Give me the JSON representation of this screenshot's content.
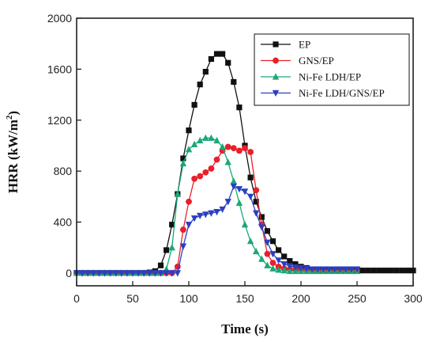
{
  "chart_data": {
    "type": "line",
    "xlabel": "Time (s)",
    "ylabel_main": "HRR (kW/m",
    "ylabel_sup": "2",
    "ylabel_close": ")",
    "xlim": [
      0,
      300
    ],
    "ylim": [
      -100,
      2000
    ],
    "xticks": [
      0,
      50,
      100,
      150,
      200,
      250,
      300
    ],
    "yticks": [
      0,
      400,
      800,
      1200,
      1600,
      2000
    ],
    "grid": false,
    "legend_position": "top-right",
    "series": [
      {
        "name": "EP",
        "color": "#111111",
        "marker": "square",
        "x": [
          0,
          5,
          10,
          15,
          20,
          25,
          30,
          35,
          40,
          45,
          50,
          55,
          60,
          65,
          70,
          75,
          80,
          85,
          90,
          95,
          100,
          105,
          110,
          115,
          120,
          125,
          130,
          135,
          140,
          145,
          150,
          155,
          160,
          165,
          170,
          175,
          180,
          185,
          190,
          195,
          200,
          205,
          210,
          215,
          220,
          225,
          230,
          235,
          240,
          245,
          250,
          255,
          260,
          265,
          270,
          275,
          280,
          285,
          290,
          295,
          300
        ],
        "y": [
          0,
          0,
          0,
          0,
          0,
          0,
          0,
          0,
          0,
          0,
          0,
          0,
          0,
          5,
          15,
          60,
          180,
          380,
          620,
          900,
          1120,
          1320,
          1480,
          1580,
          1680,
          1720,
          1720,
          1650,
          1500,
          1300,
          1000,
          750,
          560,
          440,
          330,
          250,
          180,
          130,
          95,
          70,
          50,
          40,
          30,
          25,
          20,
          20,
          20,
          20,
          20,
          20,
          20,
          20,
          20,
          20,
          20,
          20,
          20,
          20,
          20,
          20,
          20
        ]
      },
      {
        "name": "GNS/EP",
        "color": "#e8202a",
        "marker": "circle",
        "x": [
          0,
          5,
          10,
          15,
          20,
          25,
          30,
          35,
          40,
          45,
          50,
          55,
          60,
          65,
          70,
          75,
          80,
          85,
          90,
          95,
          100,
          105,
          110,
          115,
          120,
          125,
          130,
          135,
          140,
          145,
          150,
          155,
          160,
          165,
          170,
          175,
          180,
          185,
          190,
          195,
          200,
          205,
          210,
          215,
          220,
          225,
          230,
          235,
          240,
          245,
          250
        ],
        "y": [
          0,
          0,
          0,
          0,
          0,
          0,
          0,
          0,
          0,
          0,
          0,
          0,
          0,
          0,
          0,
          0,
          0,
          0,
          50,
          340,
          560,
          740,
          760,
          790,
          820,
          890,
          960,
          990,
          980,
          960,
          980,
          950,
          650,
          380,
          150,
          80,
          50,
          35,
          30,
          25,
          20,
          20,
          20,
          20,
          20,
          20,
          20,
          20,
          20,
          20,
          20
        ]
      },
      {
        "name": "Ni-Fe LDH/EP",
        "color": "#1aa877",
        "marker": "triangle-up",
        "x": [
          0,
          5,
          10,
          15,
          20,
          25,
          30,
          35,
          40,
          45,
          50,
          55,
          60,
          65,
          70,
          75,
          80,
          85,
          90,
          95,
          100,
          105,
          110,
          115,
          120,
          125,
          130,
          135,
          140,
          145,
          150,
          155,
          160,
          165,
          170,
          175,
          180,
          185,
          190,
          195,
          200,
          205,
          210,
          215,
          220,
          225,
          230,
          235,
          240,
          245,
          250
        ],
        "y": [
          0,
          0,
          0,
          0,
          0,
          0,
          0,
          0,
          0,
          0,
          0,
          0,
          0,
          0,
          0,
          0,
          30,
          200,
          620,
          860,
          970,
          1010,
          1040,
          1060,
          1060,
          1040,
          990,
          870,
          720,
          550,
          380,
          250,
          170,
          110,
          60,
          35,
          25,
          20,
          15,
          15,
          15,
          15,
          15,
          15,
          15,
          15,
          15,
          15,
          15,
          15,
          15
        ]
      },
      {
        "name": "Ni-Fe LDH/GNS/EP",
        "color": "#2b3fc0",
        "marker": "triangle-down",
        "x": [
          0,
          5,
          10,
          15,
          20,
          25,
          30,
          35,
          40,
          45,
          50,
          55,
          60,
          65,
          70,
          75,
          80,
          85,
          90,
          95,
          100,
          105,
          110,
          115,
          120,
          125,
          130,
          135,
          140,
          145,
          150,
          155,
          160,
          165,
          170,
          175,
          180,
          185,
          190,
          195,
          200,
          205,
          210,
          215,
          220,
          225,
          230,
          235,
          240,
          245,
          250
        ],
        "y": [
          0,
          0,
          0,
          0,
          0,
          0,
          0,
          0,
          0,
          0,
          0,
          0,
          0,
          0,
          0,
          0,
          0,
          0,
          0,
          210,
          380,
          430,
          450,
          460,
          470,
          480,
          500,
          560,
          680,
          660,
          640,
          600,
          470,
          360,
          240,
          150,
          100,
          70,
          55,
          45,
          40,
          35,
          30,
          30,
          30,
          30,
          30,
          30,
          30,
          30,
          30
        ]
      }
    ]
  }
}
